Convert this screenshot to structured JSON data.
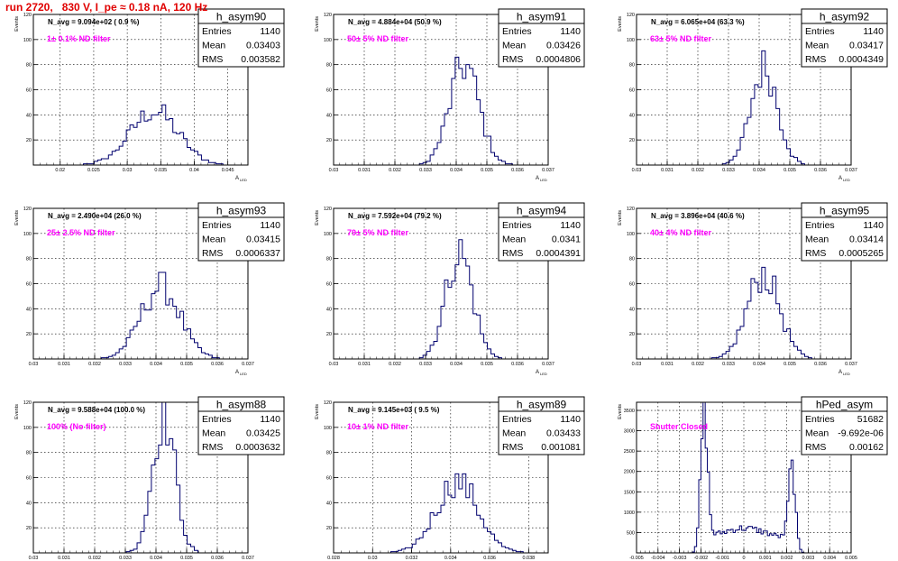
{
  "run_title": "run 2720,   830 V, I_pe ≈ 0.18 nA, 120 Hz",
  "colors": {
    "line": "#00006e",
    "annotation": "#ff00ff",
    "title": "#e00000",
    "frame": "#000000",
    "grid": "#000000"
  },
  "stats_labels": {
    "entries": "Entries",
    "mean": "Mean",
    "rms": "RMS"
  },
  "chart_data": [
    {
      "type": "bar",
      "name": "h_asym90",
      "ylabel": "Events",
      "xlabel": "A",
      "xlabel_sub": "LED",
      "xlim": [
        0.016,
        0.048
      ],
      "ylim": [
        0,
        120
      ],
      "xticks": [
        0.02,
        0.025,
        0.03,
        0.035,
        0.04,
        0.045
      ],
      "xtick_labels": [
        "0.02",
        "0.025",
        "0.03",
        "0.035",
        "0.04",
        "0.045"
      ],
      "yticks": [
        20,
        40,
        60,
        80,
        100,
        120
      ],
      "grid": true,
      "stats": {
        "entries": "1140",
        "mean": "0.03403",
        "rms": "0.003582"
      },
      "navg": "N_avg = 9.094e+02 ( 0.9 %)",
      "annotation": "1± 0.1% ND filter",
      "hist": {
        "mean": 0.03403,
        "rms": 0.003582,
        "peak": 43
      }
    },
    {
      "type": "bar",
      "name": "h_asym91",
      "ylabel": "Events",
      "xlabel": "A",
      "xlabel_sub": "LED",
      "xlim": [
        0.03,
        0.037
      ],
      "ylim": [
        0,
        120
      ],
      "xticks": [
        0.03,
        0.031,
        0.032,
        0.033,
        0.034,
        0.035,
        0.036,
        0.037
      ],
      "xtick_labels": [
        "0.03",
        "0.031",
        "0.032",
        "0.033",
        "0.034",
        "0.035",
        "0.036",
        "0.037"
      ],
      "yticks": [
        20,
        40,
        60,
        80,
        100,
        120
      ],
      "grid": true,
      "stats": {
        "entries": "1140",
        "mean": "0.03426",
        "rms": "0.0004806"
      },
      "navg": "N_avg = 4.884e+04 (50.9 %)",
      "annotation": "50± 5% ND filter",
      "hist": {
        "mean": 0.03426,
        "rms": 0.0004806,
        "peak": 80
      }
    },
    {
      "type": "bar",
      "name": "h_asym92",
      "ylabel": "Events",
      "xlabel": "A",
      "xlabel_sub": "LED",
      "xlim": [
        0.03,
        0.037
      ],
      "ylim": [
        0,
        120
      ],
      "xticks": [
        0.03,
        0.031,
        0.032,
        0.033,
        0.034,
        0.035,
        0.036,
        0.037
      ],
      "xtick_labels": [
        "0.03",
        "0.031",
        "0.032",
        "0.033",
        "0.034",
        "0.035",
        "0.036",
        "0.037"
      ],
      "yticks": [
        20,
        40,
        60,
        80,
        100,
        120
      ],
      "grid": true,
      "stats": {
        "entries": "1140",
        "mean": "0.03417",
        "rms": "0.0004349"
      },
      "navg": "N_avg = 6.065e+04 (63.3 %)",
      "annotation": "63± 5% ND filter",
      "hist": {
        "mean": 0.03417,
        "rms": 0.0004349,
        "peak": 78
      }
    },
    {
      "type": "bar",
      "name": "h_asym93",
      "ylabel": "Events",
      "xlabel": "A",
      "xlabel_sub": "LED",
      "xlim": [
        0.03,
        0.037
      ],
      "ylim": [
        0,
        120
      ],
      "xticks": [
        0.03,
        0.031,
        0.032,
        0.033,
        0.034,
        0.035,
        0.036,
        0.037
      ],
      "xtick_labels": [
        "0.03",
        "0.031",
        "0.032",
        "0.033",
        "0.034",
        "0.035",
        "0.036",
        "0.037"
      ],
      "yticks": [
        20,
        40,
        60,
        80,
        100,
        120
      ],
      "grid": true,
      "stats": {
        "entries": "1140",
        "mean": "0.03415",
        "rms": "0.0006337"
      },
      "navg": "N_avg = 2.490e+04 (26.0 %)",
      "annotation": "25± 2.5% ND filter",
      "hist": {
        "mean": 0.03415,
        "rms": 0.0006337,
        "peak": 58
      }
    },
    {
      "type": "bar",
      "name": "h_asym94",
      "ylabel": "Events",
      "xlabel": "A",
      "xlabel_sub": "LED",
      "xlim": [
        0.03,
        0.037
      ],
      "ylim": [
        0,
        120
      ],
      "xticks": [
        0.03,
        0.031,
        0.032,
        0.033,
        0.034,
        0.035,
        0.036,
        0.037
      ],
      "xtick_labels": [
        "0.03",
        "0.031",
        "0.032",
        "0.033",
        "0.034",
        "0.035",
        "0.036",
        "0.037"
      ],
      "yticks": [
        20,
        40,
        60,
        80,
        100,
        120
      ],
      "grid": true,
      "stats": {
        "entries": "1140",
        "mean": "0.0341",
        "rms": "0.0004391"
      },
      "navg": "N_avg = 7.592e+04 (79.2 %)",
      "annotation": "79± 5% ND filter",
      "hist": {
        "mean": 0.0341,
        "rms": 0.0004391,
        "peak": 85
      }
    },
    {
      "type": "bar",
      "name": "h_asym95",
      "ylabel": "Events",
      "xlabel": "A",
      "xlabel_sub": "LED",
      "xlim": [
        0.03,
        0.037
      ],
      "ylim": [
        0,
        120
      ],
      "xticks": [
        0.03,
        0.031,
        0.032,
        0.033,
        0.034,
        0.035,
        0.036,
        0.037
      ],
      "xtick_labels": [
        "0.03",
        "0.031",
        "0.032",
        "0.033",
        "0.034",
        "0.035",
        "0.036",
        "0.037"
      ],
      "yticks": [
        20,
        40,
        60,
        80,
        100,
        120
      ],
      "grid": true,
      "stats": {
        "entries": "1140",
        "mean": "0.03414",
        "rms": "0.0005265"
      },
      "navg": "N_avg = 3.896e+04 (40.6 %)",
      "annotation": "40± 4% ND filter",
      "hist": {
        "mean": 0.03414,
        "rms": 0.0005265,
        "peak": 68
      }
    },
    {
      "type": "bar",
      "name": "h_asym88",
      "ylabel": "Events",
      "xlabel": "A",
      "xlabel_sub": "LED",
      "xlim": [
        0.03,
        0.037
      ],
      "ylim": [
        0,
        120
      ],
      "xticks": [
        0.03,
        0.031,
        0.032,
        0.033,
        0.034,
        0.035,
        0.036,
        0.037
      ],
      "xtick_labels": [
        "0.03",
        "0.031",
        "0.032",
        "0.033",
        "0.034",
        "0.035",
        "0.036",
        "0.037"
      ],
      "yticks": [
        20,
        40,
        60,
        80,
        100,
        120
      ],
      "grid": true,
      "stats": {
        "entries": "1140",
        "mean": "0.03425",
        "rms": "0.0003632"
      },
      "navg": "N_avg = 9.588e+04 (100.0 %)",
      "annotation": "100% (No filter)",
      "hist": {
        "mean": 0.03425,
        "rms": 0.0003632,
        "peak": 112
      }
    },
    {
      "type": "bar",
      "name": "h_asym89",
      "ylabel": "Events",
      "xlabel": "A",
      "xlabel_sub": "LED",
      "xlim": [
        0.028,
        0.039
      ],
      "ylim": [
        0,
        120
      ],
      "xticks": [
        0.028,
        0.03,
        0.032,
        0.034,
        0.036,
        0.038
      ],
      "xtick_labels": [
        "0.028",
        "0.03",
        "0.032",
        "0.034",
        "0.036",
        "0.038"
      ],
      "yticks": [
        20,
        40,
        60,
        80,
        100,
        120
      ],
      "grid": true,
      "stats": {
        "entries": "1140",
        "mean": "0.03433",
        "rms": "0.001081"
      },
      "navg": "N_avg = 9.145e+03 ( 9.5 %)",
      "annotation": "10± 1% ND filter",
      "hist": {
        "mean": 0.03433,
        "rms": 0.001081,
        "peak": 57
      }
    },
    {
      "type": "bar",
      "name": "hPed_asym",
      "ylabel": "Events",
      "xlabel": "A",
      "xlabel_sub": "LED",
      "xlim": [
        -0.005,
        0.005
      ],
      "ylim": [
        0,
        3700
      ],
      "xticks": [
        -0.005,
        -0.004,
        -0.003,
        -0.002,
        -0.001,
        0,
        0.001,
        0.002,
        0.003,
        0.004,
        0.005
      ],
      "xtick_labels": [
        "-0.005",
        "-0.004",
        "-0.003",
        "-0.002",
        "-0.001",
        "0",
        "0.001",
        "0.002",
        "0.003",
        "0.004",
        "0.005"
      ],
      "yticks": [
        500,
        1000,
        1500,
        2000,
        2500,
        3000,
        3500
      ],
      "grid": true,
      "stats": {
        "entries": "51682",
        "mean": "-9.692e-06",
        "rms": "0.00162"
      },
      "navg": "",
      "annotation": "Shutter Closed",
      "hist": {
        "peaks": [
          {
            "mean": -0.00185,
            "sigma": 0.00016,
            "amp": 3100
          },
          {
            "mean": 0.00225,
            "sigma": 0.00016,
            "amp": 1800
          }
        ],
        "floor": 550,
        "floor_range": [
          -0.0022,
          0.0025
        ]
      }
    }
  ]
}
